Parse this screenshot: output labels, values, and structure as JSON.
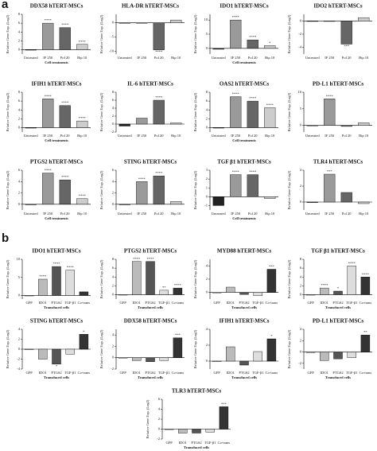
{
  "panel_labels": [
    "a",
    "b"
  ],
  "chart_data": [
    {
      "type": "bar",
      "title": "DDX58 hTERT-MSCs",
      "y_label": "Relative Gene Exp. (Log2)",
      "x_label": "Cell treatments",
      "categories": [
        "Untreated",
        "IF 250",
        "Pol 20",
        "Bip 10"
      ],
      "values": [
        0,
        6,
        5,
        1.2
      ],
      "annotations": [
        null,
        "****",
        "****",
        "****"
      ],
      "colors": [
        "#222222",
        "#9a9a9a",
        "#666666",
        "#cccccc"
      ],
      "ylim": [
        -1,
        8
      ],
      "yticks": [
        0,
        2,
        4,
        6,
        8
      ]
    },
    {
      "type": "bar",
      "title": "HLA-DR hTERT-MSCs",
      "y_label": "Relative Gene Exp. (Log2)",
      "categories": [
        "Untreated",
        "IF 250",
        "Pol 20",
        "Bip 10"
      ],
      "values": [
        0,
        0,
        -9.5,
        1
      ],
      "annotations": [
        null,
        null,
        "****",
        null
      ],
      "colors": [
        "#222222",
        "#9a9a9a",
        "#666666",
        "#cccccc"
      ],
      "ylim": [
        -11,
        3
      ],
      "yticks": [
        -10,
        -5,
        0
      ]
    },
    {
      "type": "bar",
      "title": "IDO1 hTERT-MSCs",
      "y_label": "Relative Gene Exp. (Log2)",
      "x_label": "Cell treatments",
      "categories": [
        "Untreated",
        "IF 250",
        "Pol 20",
        "Bip 10"
      ],
      "values": [
        -0.3,
        10,
        3,
        1
      ],
      "annotations": [
        null,
        "****",
        "****",
        "*"
      ],
      "colors": [
        "#222222",
        "#9a9a9a",
        "#666666",
        "#cccccc"
      ],
      "ylim": [
        -2,
        12
      ],
      "yticks": [
        0,
        5,
        10
      ]
    },
    {
      "type": "bar",
      "title": "IDO2 hTERT-MSCs",
      "y_label": "Relative Gene Exp. (Log2)",
      "categories": [
        "Untreated",
        "IF 250",
        "Pol 20",
        "Bip 10"
      ],
      "values": [
        0,
        0,
        -3.5,
        0.5
      ],
      "annotations": [
        null,
        null,
        "***",
        null
      ],
      "colors": [
        "#222222",
        "#9a9a9a",
        "#666666",
        "#cccccc"
      ],
      "ylim": [
        -5,
        1
      ],
      "yticks": [
        -4,
        -2,
        0
      ]
    },
    {
      "type": "bar",
      "title": "IFIH1 hTERT-MSCs",
      "y_label": "Relative Gene Exp. (Log2)",
      "x_label": "Cell treatments",
      "categories": [
        "Untreated",
        "IF 250",
        "Pol 20",
        "Bip 10"
      ],
      "values": [
        0,
        6.5,
        5,
        1.5
      ],
      "annotations": [
        null,
        "****",
        "****",
        "****"
      ],
      "colors": [
        "#222222",
        "#9a9a9a",
        "#666666",
        "#cccccc"
      ],
      "ylim": [
        -1,
        8
      ],
      "yticks": [
        0,
        2,
        4,
        6,
        8
      ]
    },
    {
      "type": "bar",
      "title": "IL-6 hTERT-MSCs",
      "y_label": "Relative Gene Exp. (Log2)",
      "categories": [
        "Untreated",
        "IF 250",
        "Pol 20",
        "Bip 10"
      ],
      "values": [
        -0.5,
        1.5,
        6,
        0.3
      ],
      "annotations": [
        null,
        null,
        "****",
        null
      ],
      "colors": [
        "#222222",
        "#9a9a9a",
        "#666666",
        "#cccccc"
      ],
      "ylim": [
        -2,
        8
      ],
      "yticks": [
        -2,
        0,
        2,
        4,
        6,
        8
      ]
    },
    {
      "type": "bar",
      "title": "OAS2 hTERT-MSCs",
      "y_label": "Relative Gene Exp. (Log2)",
      "x_label": "Cell treatments",
      "categories": [
        "Untreated",
        "IF 250",
        "Pol 20",
        "Bip 10"
      ],
      "values": [
        0,
        7,
        6,
        4.5
      ],
      "annotations": [
        null,
        "****",
        "****",
        "****"
      ],
      "colors": [
        "#222222",
        "#9a9a9a",
        "#666666",
        "#cccccc"
      ],
      "ylim": [
        -1,
        8
      ],
      "yticks": [
        0,
        2,
        4,
        6,
        8
      ]
    },
    {
      "type": "bar",
      "title": "PD-L1 hTERT-MSCs",
      "y_label": "Relative Gene Exp. (Log2)",
      "categories": [
        "Untreated",
        "IF 250",
        "Pol 20",
        "Bip 10"
      ],
      "values": [
        0,
        8,
        -0.3,
        0.8
      ],
      "annotations": [
        null,
        "****",
        null,
        null
      ],
      "colors": [
        "#222222",
        "#9a9a9a",
        "#666666",
        "#cccccc"
      ],
      "ylim": [
        -2,
        10
      ],
      "yticks": [
        0,
        5,
        10
      ]
    },
    {
      "type": "bar",
      "title": "PTGS2 hTERT-MSCs",
      "y_label": "Relative Gene Exp. (Log2)",
      "x_label": "Cell treatments",
      "categories": [
        "Untreated",
        "IF 250",
        "Pol 20",
        "Bip 10"
      ],
      "values": [
        0,
        5.5,
        4.3,
        1
      ],
      "annotations": [
        null,
        "****",
        "****",
        "****"
      ],
      "colors": [
        "#222222",
        "#9a9a9a",
        "#666666",
        "#cccccc"
      ],
      "ylim": [
        -1,
        6
      ],
      "yticks": [
        0,
        2,
        4,
        6
      ]
    },
    {
      "type": "bar",
      "title": "STING hTERT-MSCs",
      "y_label": "Relative Gene Exp. (Log2)",
      "categories": [
        "Untreated",
        "IF 250",
        "Pol 20",
        "Bip 10"
      ],
      "values": [
        0,
        4,
        5,
        0.5
      ],
      "annotations": [
        null,
        "****",
        "****",
        null
      ],
      "colors": [
        "#222222",
        "#9a9a9a",
        "#666666",
        "#cccccc"
      ],
      "ylim": [
        -1,
        6
      ],
      "yticks": [
        0,
        2,
        4,
        6
      ]
    },
    {
      "type": "bar",
      "title": "TGF β1 hTERT-MSCs",
      "y_label": "Relative Gene Exp. (Log2)",
      "x_label": "Cell treatments",
      "categories": [
        "Untreated",
        "IF 250",
        "Pol 20",
        "Bip 10"
      ],
      "values": [
        -1,
        2.5,
        2.5,
        -0.2
      ],
      "annotations": [
        null,
        "****",
        "****",
        null
      ],
      "colors": [
        "#222222",
        "#9a9a9a",
        "#666666",
        "#cccccc"
      ],
      "ylim": [
        -1.5,
        3
      ],
      "yticks": [
        -1,
        0,
        1,
        2,
        3
      ]
    },
    {
      "type": "bar",
      "title": "TLR4 hTERT-MSCs",
      "y_label": "Relative Gene Exp. (Log2)",
      "categories": [
        "Untreated",
        "IF 250",
        "Pol 20",
        "Bip 10"
      ],
      "values": [
        0,
        3.5,
        1.2,
        -0.2
      ],
      "annotations": [
        null,
        "***",
        null,
        null
      ],
      "colors": [
        "#222222",
        "#9a9a9a",
        "#666666",
        "#cccccc"
      ],
      "ylim": [
        -1,
        4
      ],
      "yticks": [
        0,
        2,
        4
      ]
    },
    {
      "type": "bar",
      "title": "IDO1 hTERT-MSCs",
      "y_label": "Relative Gene Exp. (Log2)",
      "x_label": "Transduced cells",
      "categories": [
        "GFP",
        "IDO1",
        "PTGS2",
        "TGF-β1",
        "Co-trans"
      ],
      "values": [
        0,
        4.5,
        8,
        7,
        1
      ],
      "annotations": [
        null,
        "****",
        "****",
        "****",
        null
      ],
      "colors": [
        "#ffffff",
        "#bbbbbb",
        "#555555",
        "#dddddd",
        "#333333"
      ],
      "ylim": [
        -1,
        10
      ],
      "yticks": [
        0,
        5,
        10
      ]
    },
    {
      "type": "bar",
      "title": "PTGS2 hTERT-MSCs",
      "y_label": "Relative Gene Exp. (Log2)",
      "x_label": "Transduced cells",
      "categories": [
        "GFP",
        "IDO1",
        "PTGS2",
        "TGF-β1",
        "Co-trans"
      ],
      "values": [
        0,
        7.5,
        7.5,
        1,
        1.5
      ],
      "annotations": [
        null,
        "****",
        "****",
        "**",
        "****"
      ],
      "colors": [
        "#ffffff",
        "#bbbbbb",
        "#555555",
        "#dddddd",
        "#333333"
      ],
      "ylim": [
        -1,
        8
      ],
      "yticks": [
        0,
        2,
        4,
        6,
        8
      ]
    },
    {
      "type": "bar",
      "title": "MYD88 hTERT-MSCs",
      "y_label": "Relative Gene Exp. (Log2)",
      "x_label": "Transduced cells",
      "categories": [
        "GFP",
        "IDO1",
        "PTGS2",
        "TGF-β1",
        "Co-trans"
      ],
      "values": [
        0,
        0.8,
        -0.3,
        -0.5,
        3.5
      ],
      "annotations": [
        null,
        null,
        null,
        null,
        "***"
      ],
      "colors": [
        "#ffffff",
        "#bbbbbb",
        "#555555",
        "#dddddd",
        "#333333"
      ],
      "ylim": [
        -1,
        5
      ],
      "yticks": [
        0,
        2,
        4
      ]
    },
    {
      "type": "bar",
      "title": "TGF β1 hTERT-MSCs",
      "y_label": "Relative Gene Exp. (Log2)",
      "x_label": "Transduced cells",
      "categories": [
        "GFP",
        "IDO1",
        "PTGS2",
        "TGF-β1",
        "Co-trans"
      ],
      "values": [
        0,
        1.5,
        0.8,
        6.5,
        4
      ],
      "annotations": [
        null,
        "****",
        "*",
        "****",
        "****"
      ],
      "colors": [
        "#ffffff",
        "#bbbbbb",
        "#555555",
        "#dddddd",
        "#333333"
      ],
      "ylim": [
        -1,
        8
      ],
      "yticks": [
        0,
        2,
        4,
        6,
        8
      ]
    },
    {
      "type": "bar",
      "title": "STING hTERT-MSCs",
      "y_label": "Relative Gene Exp. (Log2)",
      "x_label": "Transduced cells",
      "categories": [
        "GFP",
        "IDO1",
        "PTGS2",
        "TGF-β1",
        "Co-trans"
      ],
      "values": [
        0,
        -2,
        -3,
        -1,
        3
      ],
      "annotations": [
        null,
        null,
        "*",
        null,
        "*"
      ],
      "colors": [
        "#ffffff",
        "#bbbbbb",
        "#555555",
        "#dddddd",
        "#333333"
      ],
      "ylim": [
        -4,
        4
      ],
      "yticks": [
        -4,
        -2,
        0,
        2,
        4
      ]
    },
    {
      "type": "bar",
      "title": "DDX58 hTERT-MSCs",
      "y_label": "Relative Gene Exp. (Log2)",
      "x_label": "Transduced cells",
      "categories": [
        "GFP",
        "IDO1",
        "PTGS2",
        "TGF-β1",
        "Co-trans"
      ],
      "values": [
        0,
        -0.5,
        -0.7,
        -0.5,
        3.5
      ],
      "annotations": [
        null,
        null,
        null,
        null,
        "***"
      ],
      "colors": [
        "#ffffff",
        "#bbbbbb",
        "#555555",
        "#dddddd",
        "#333333"
      ],
      "ylim": [
        -2,
        5
      ],
      "yticks": [
        -2,
        0,
        2,
        4
      ]
    },
    {
      "type": "bar",
      "title": "IFIH1 hTERT-MSCs",
      "y_label": "Relative Gene Exp. (Log2)",
      "x_label": "Transduced cells",
      "categories": [
        "GFP",
        "IDO1",
        "PTGS2",
        "TGF-β1",
        "Co-trans"
      ],
      "values": [
        0,
        1.8,
        -0.5,
        1.2,
        2.8
      ],
      "annotations": [
        null,
        null,
        null,
        null,
        "*"
      ],
      "colors": [
        "#ffffff",
        "#bbbbbb",
        "#555555",
        "#dddddd",
        "#333333"
      ],
      "ylim": [
        -1,
        4
      ],
      "yticks": [
        0,
        2,
        4
      ]
    },
    {
      "type": "bar",
      "title": "PD-L1 hTERT-MSCs",
      "y_label": "Relative Gene Exp. (Log2)",
      "x_label": "Transduced cells",
      "categories": [
        "GFP",
        "IDO1",
        "PTGS2",
        "TGF-β1",
        "Co-trans"
      ],
      "values": [
        0,
        -1.5,
        -1.2,
        -1,
        3
      ],
      "annotations": [
        null,
        null,
        null,
        null,
        "**"
      ],
      "colors": [
        "#ffffff",
        "#bbbbbb",
        "#555555",
        "#dddddd",
        "#333333"
      ],
      "ylim": [
        -3,
        4
      ],
      "yticks": [
        -2,
        0,
        2,
        4
      ]
    },
    {
      "type": "bar",
      "title": "TLR3 hTERT-MSCs",
      "y_label": "Relative Gene Exp. (Log2)",
      "x_label": "Transduced cells",
      "categories": [
        "GFP",
        "IDO1",
        "PTGS2",
        "TGF-β1",
        "Co-trans"
      ],
      "values": [
        0,
        -0.8,
        -0.8,
        -0.6,
        4.5
      ],
      "annotations": [
        null,
        null,
        null,
        null,
        "***"
      ],
      "colors": [
        "#ffffff",
        "#bbbbbb",
        "#555555",
        "#dddddd",
        "#333333"
      ],
      "ylim": [
        -2,
        6
      ],
      "yticks": [
        -2,
        0,
        2,
        4,
        6
      ]
    }
  ]
}
